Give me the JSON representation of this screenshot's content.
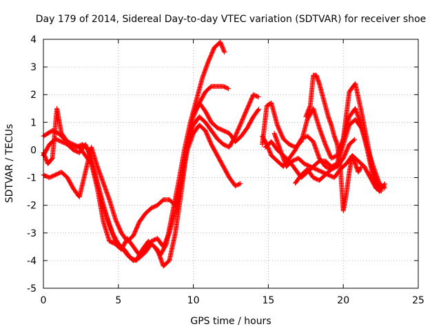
{
  "chart_data": {
    "type": "scatter",
    "title": "Day 179 of 2014, Sidereal Day-to-day VTEC variation (SDTVAR) for receiver shoe",
    "xlabel": "GPS time / hours",
    "ylabel": "SDTVAR / TECUs",
    "xlim": [
      0,
      25
    ],
    "ylim": [
      -5,
      4
    ],
    "xticks": [
      0,
      5,
      10,
      15,
      20,
      25
    ],
    "yticks": [
      -5,
      -4,
      -3,
      -2,
      -1,
      0,
      1,
      2,
      3,
      4
    ],
    "grid": true,
    "marker": "+",
    "color": "#ff0000",
    "series": [
      {
        "x": [
          0,
          0.3,
          0.6,
          1.0,
          1.4,
          1.8,
          2.2,
          2.6,
          3.0,
          3.4,
          3.8,
          4.2,
          4.6,
          5.0,
          5.4,
          5.8,
          6.2,
          6.6,
          7.0,
          7.4,
          7.8,
          8.2,
          8.6,
          9.0,
          9.4,
          9.8,
          10.2,
          10.6,
          11.0,
          11.4,
          11.8,
          12.1
        ],
        "y": [
          0.5,
          0.6,
          0.7,
          0.6,
          0.4,
          0.2,
          0.1,
          0.2,
          0.0,
          -0.8,
          -1.6,
          -2.4,
          -3.0,
          -3.4,
          -3.6,
          -3.9,
          -4.0,
          -3.6,
          -3.3,
          -3.5,
          -3.8,
          -3.4,
          -2.3,
          -1.2,
          0.0,
          1.0,
          1.8,
          2.6,
          3.2,
          3.7,
          3.9,
          3.5
        ]
      },
      {
        "x": [
          0,
          0.4,
          0.8,
          1.2,
          1.6,
          2.0,
          2.4,
          2.8,
          3.2,
          3.6,
          4.0,
          4.4,
          4.8,
          5.2,
          5.6,
          6.0,
          6.4,
          6.8,
          7.2,
          7.6,
          8.0,
          8.4,
          8.8,
          9.2,
          9.6,
          10.0,
          10.4,
          10.8,
          11.2,
          11.6,
          12.0,
          12.4
        ],
        "y": [
          -0.2,
          0.2,
          0.4,
          0.3,
          0.2,
          0.0,
          -0.1,
          0.2,
          -0.3,
          -1.2,
          -2.0,
          -2.7,
          -3.3,
          -3.5,
          -3.8,
          -4.0,
          -3.9,
          -3.7,
          -3.4,
          -3.6,
          -4.2,
          -4.0,
          -3.0,
          -1.5,
          0.2,
          1.2,
          1.7,
          2.1,
          2.3,
          2.3,
          2.3,
          2.2
        ]
      },
      {
        "x": [
          0,
          0.4,
          0.8,
          1.2,
          1.6,
          2.0,
          2.4,
          2.8,
          3.2,
          3.6,
          4.0,
          4.4,
          4.8,
          5.2,
          5.6,
          6.0,
          6.4,
          6.8,
          7.2,
          7.6,
          8.0,
          8.4,
          8.8,
          9.2,
          9.6,
          10.0,
          10.4,
          10.8,
          11.2,
          11.6,
          12.0,
          12.4,
          12.8,
          13.2
        ],
        "y": [
          -0.9,
          -1.0,
          -0.9,
          -0.8,
          -1.0,
          -1.4,
          -1.7,
          -0.8,
          0.1,
          -0.6,
          -1.2,
          -1.8,
          -2.5,
          -3.0,
          -3.3,
          -3.1,
          -2.6,
          -2.3,
          -2.1,
          -2.0,
          -1.8,
          -1.8,
          -2.0,
          -1.2,
          0.0,
          0.6,
          0.9,
          0.7,
          0.2,
          -0.2,
          -0.6,
          -1.0,
          -1.3,
          -1.2
        ]
      },
      {
        "x": [
          0,
          0.3,
          0.6,
          0.9,
          1.2,
          1.6,
          2.0,
          2.4,
          2.8,
          3.2,
          3.6,
          4.0,
          4.4,
          4.8,
          5.2,
          5.6,
          6.0,
          6.4,
          6.8,
          7.2,
          7.6,
          8.0,
          8.4,
          8.8,
          9.2,
          9.6,
          10.0,
          10.4,
          10.8,
          11.2,
          11.6,
          12.0,
          12.4,
          12.8,
          13.2,
          13.6,
          14.0,
          14.4
        ],
        "y": [
          -0.1,
          -0.5,
          -0.3,
          1.5,
          0.6,
          0.3,
          0.2,
          0.1,
          -0.2,
          -0.5,
          -1.4,
          -2.6,
          -3.3,
          -3.4,
          -3.6,
          -3.2,
          -3.5,
          -3.8,
          -3.6,
          -3.3,
          -3.2,
          -3.5,
          -3.0,
          -2.2,
          -1.0,
          0.2,
          0.9,
          1.2,
          1.0,
          0.7,
          0.4,
          0.2,
          0.1,
          0.5,
          1.0,
          1.5,
          2.0,
          1.9
        ]
      },
      {
        "x": [
          10.0,
          10.4,
          10.8,
          11.2,
          11.6,
          12.0,
          12.4,
          12.8,
          13.2,
          13.6,
          14.0,
          14.4
        ],
        "y": [
          1.3,
          1.7,
          1.4,
          1.0,
          0.8,
          0.7,
          0.6,
          0.3,
          0.5,
          0.8,
          1.2,
          1.5
        ]
      },
      {
        "x": [
          14.6,
          14.9,
          15.2,
          15.6,
          16.0,
          16.4,
          16.8,
          17.2,
          17.6,
          18.0,
          18.4,
          18.8,
          19.2,
          19.6,
          20.0,
          20.4,
          20.8,
          21.2,
          21.6,
          22.0,
          22.4,
          22.8
        ],
        "y": [
          0.2,
          1.6,
          1.7,
          0.9,
          0.4,
          0.2,
          0.1,
          0.3,
          1.1,
          1.5,
          0.8,
          0.2,
          -0.3,
          -0.2,
          0.4,
          1.2,
          1.5,
          0.9,
          0.0,
          -1.0,
          -1.4,
          -1.3
        ]
      },
      {
        "x": [
          14.6,
          14.9,
          15.2,
          15.6,
          16.0,
          16.4,
          16.8,
          17.2,
          17.6,
          18.0,
          18.4,
          18.8,
          19.2,
          19.6,
          20.0,
          20.4,
          20.8,
          21.2,
          21.6,
          22.0,
          22.4,
          22.8
        ],
        "y": [
          0.5,
          0.2,
          -0.2,
          -0.4,
          -0.6,
          -0.3,
          0.0,
          0.4,
          0.5,
          0.3,
          -0.3,
          -0.6,
          -0.7,
          -0.5,
          0.4,
          2.1,
          2.4,
          1.4,
          0.3,
          -0.9,
          -1.5,
          -1.2
        ]
      },
      {
        "x": [
          14.8,
          15.2,
          15.6,
          16.0,
          16.4,
          16.8,
          17.2,
          17.6,
          18.0,
          18.4,
          18.8,
          19.2,
          19.6,
          20.0,
          20.4,
          20.8,
          21.2,
          21.6,
          22.0,
          22.4,
          22.8
        ],
        "y": [
          0.1,
          0.3,
          0.0,
          -0.2,
          -0.4,
          -0.7,
          -1.0,
          -0.8,
          -0.6,
          -0.4,
          -0.4,
          -0.6,
          -0.5,
          0.2,
          0.9,
          1.1,
          0.8,
          0.1,
          -0.6,
          -1.2,
          -1.4
        ]
      },
      {
        "x": [
          15.4,
          15.8,
          16.2,
          16.6,
          17.0,
          17.4,
          17.8,
          18.2,
          18.6,
          19.0,
          19.4,
          19.8,
          20.2,
          20.6,
          21.0,
          21.4,
          21.8,
          22.2,
          22.6
        ],
        "y": [
          0.6,
          0.0,
          -0.6,
          -0.4,
          -0.3,
          -0.5,
          -0.6,
          -0.7,
          -0.8,
          -0.9,
          -1.0,
          -0.7,
          -0.5,
          -0.2,
          -0.4,
          -0.6,
          -1.0,
          -1.4,
          -1.5
        ]
      },
      {
        "x": [
          17.5,
          17.8,
          18.0,
          18.2,
          18.4,
          18.6,
          18.8,
          19.0,
          19.2,
          19.4,
          19.6,
          19.8,
          20.0,
          20.2,
          20.4,
          20.6,
          20.8,
          21.0,
          21.2
        ],
        "y": [
          1.2,
          1.6,
          2.7,
          2.7,
          2.4,
          2.0,
          1.6,
          1.2,
          0.9,
          0.5,
          0.2,
          -0.6,
          -2.2,
          -1.6,
          -0.8,
          -0.2,
          -0.5,
          -0.8,
          -0.6
        ]
      },
      {
        "x": [
          16.8,
          17.2,
          17.6,
          18.0,
          18.4,
          18.8,
          19.2,
          19.6,
          20.0,
          20.4,
          20.8
        ],
        "y": [
          -1.2,
          -0.9,
          -0.7,
          -1.0,
          -1.1,
          -0.9,
          -0.7,
          -0.6,
          -0.3,
          0.2,
          0.4
        ]
      }
    ]
  }
}
